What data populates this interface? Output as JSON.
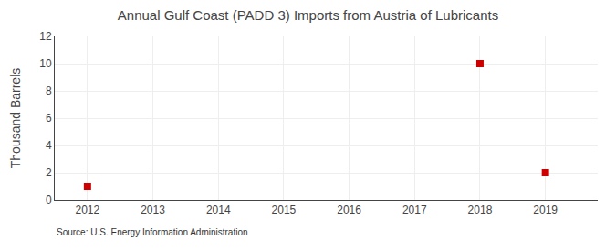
{
  "chart_data": {
    "type": "scatter",
    "title": "Annual Gulf Coast (PADD 3) Imports from Austria of Lubricants",
    "ylabel": "Thousand Barrels",
    "annotations": [
      "Source: U.S. Energy Information Administration"
    ],
    "x": [
      2012,
      2018,
      2019
    ],
    "values": [
      1,
      10,
      2
    ],
    "color": "#cc0000",
    "marker": "square",
    "xlim": [
      2011.5,
      2019.8
    ],
    "xticks": [
      2012,
      2013,
      2014,
      2015,
      2016,
      2017,
      2018,
      2019
    ],
    "ylim": [
      0,
      12
    ],
    "yticks": [
      0,
      2,
      4,
      6,
      8,
      10,
      12
    ],
    "grid": true
  }
}
